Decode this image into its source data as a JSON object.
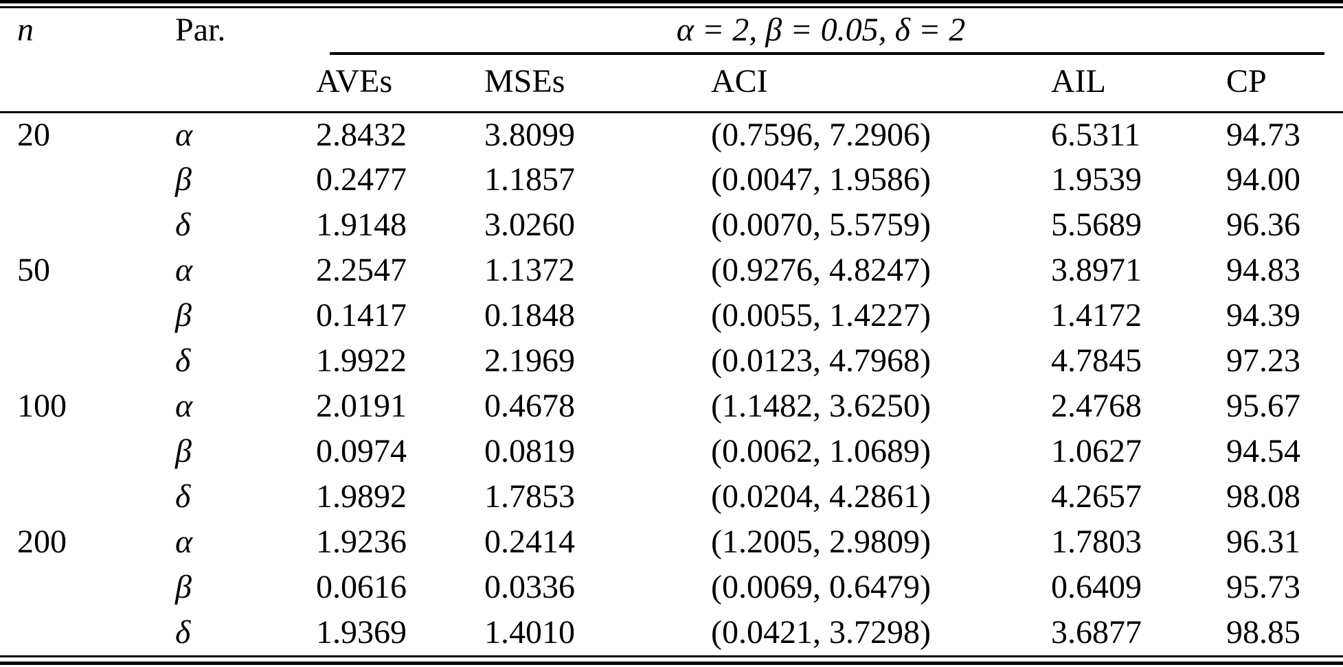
{
  "table": {
    "headers": {
      "n": "n",
      "par": "Par.",
      "span": "α = 2, β = 0.05, δ = 2",
      "stats": [
        "AVEs",
        "MSEs",
        "ACI",
        "AIL",
        "CP"
      ]
    },
    "rows": [
      {
        "n": "20",
        "par": "α",
        "aves": "2.8432",
        "mses": "3.8099",
        "aci": "(0.7596, 7.2906)",
        "ail": "6.5311",
        "cp": "94.73"
      },
      {
        "n": "",
        "par": "β",
        "aves": "0.2477",
        "mses": "1.1857",
        "aci": "(0.0047, 1.9586)",
        "ail": "1.9539",
        "cp": "94.00"
      },
      {
        "n": "",
        "par": "δ",
        "aves": "1.9148",
        "mses": "3.0260",
        "aci": "(0.0070, 5.5759)",
        "ail": "5.5689",
        "cp": "96.36"
      },
      {
        "n": "50",
        "par": "α",
        "aves": "2.2547",
        "mses": "1.1372",
        "aci": "(0.9276, 4.8247)",
        "ail": "3.8971",
        "cp": "94.83"
      },
      {
        "n": "",
        "par": "β",
        "aves": "0.1417",
        "mses": "0.1848",
        "aci": "(0.0055, 1.4227)",
        "ail": "1.4172",
        "cp": "94.39"
      },
      {
        "n": "",
        "par": "δ",
        "aves": "1.9922",
        "mses": "2.1969",
        "aci": "(0.0123, 4.7968)",
        "ail": "4.7845",
        "cp": "97.23"
      },
      {
        "n": "100",
        "par": "α",
        "aves": "2.0191",
        "mses": "0.4678",
        "aci": "(1.1482, 3.6250)",
        "ail": "2.4768",
        "cp": "95.67"
      },
      {
        "n": "",
        "par": "β",
        "aves": "0.0974",
        "mses": "0.0819",
        "aci": "(0.0062, 1.0689)",
        "ail": "1.0627",
        "cp": "94.54"
      },
      {
        "n": "",
        "par": "δ",
        "aves": "1.9892",
        "mses": "1.7853",
        "aci": "(0.0204, 4.2861)",
        "ail": "4.2657",
        "cp": "98.08"
      },
      {
        "n": "200",
        "par": "α",
        "aves": "1.9236",
        "mses": "0.2414",
        "aci": "(1.2005, 2.9809)",
        "ail": "1.7803",
        "cp": "96.31"
      },
      {
        "n": "",
        "par": "β",
        "aves": "0.0616",
        "mses": "0.0336",
        "aci": "(0.0069, 0.6479)",
        "ail": "0.6409",
        "cp": "95.73"
      },
      {
        "n": "",
        "par": "δ",
        "aves": "1.9369",
        "mses": "1.4010",
        "aci": "(0.0421, 3.7298)",
        "ail": "3.6877",
        "cp": "98.85"
      }
    ]
  },
  "colors": {
    "text": "#000000",
    "background": "#ffffff",
    "rule": "#000000"
  }
}
